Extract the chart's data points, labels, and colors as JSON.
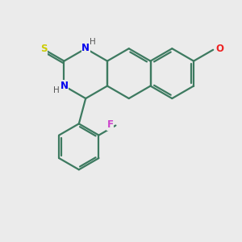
{
  "background_color": "#ebebeb",
  "bond_color": "#3d7a60",
  "N_color": "#0000ee",
  "S_color": "#cccc00",
  "F_color": "#cc44cc",
  "O_color": "#ee2222",
  "H_color": "#555555",
  "C_color": "#3d7a60",
  "lw": 1.6,
  "figsize": [
    3.0,
    3.0
  ],
  "dpi": 100,
  "xlim": [
    0,
    10
  ],
  "ylim": [
    0,
    10
  ]
}
